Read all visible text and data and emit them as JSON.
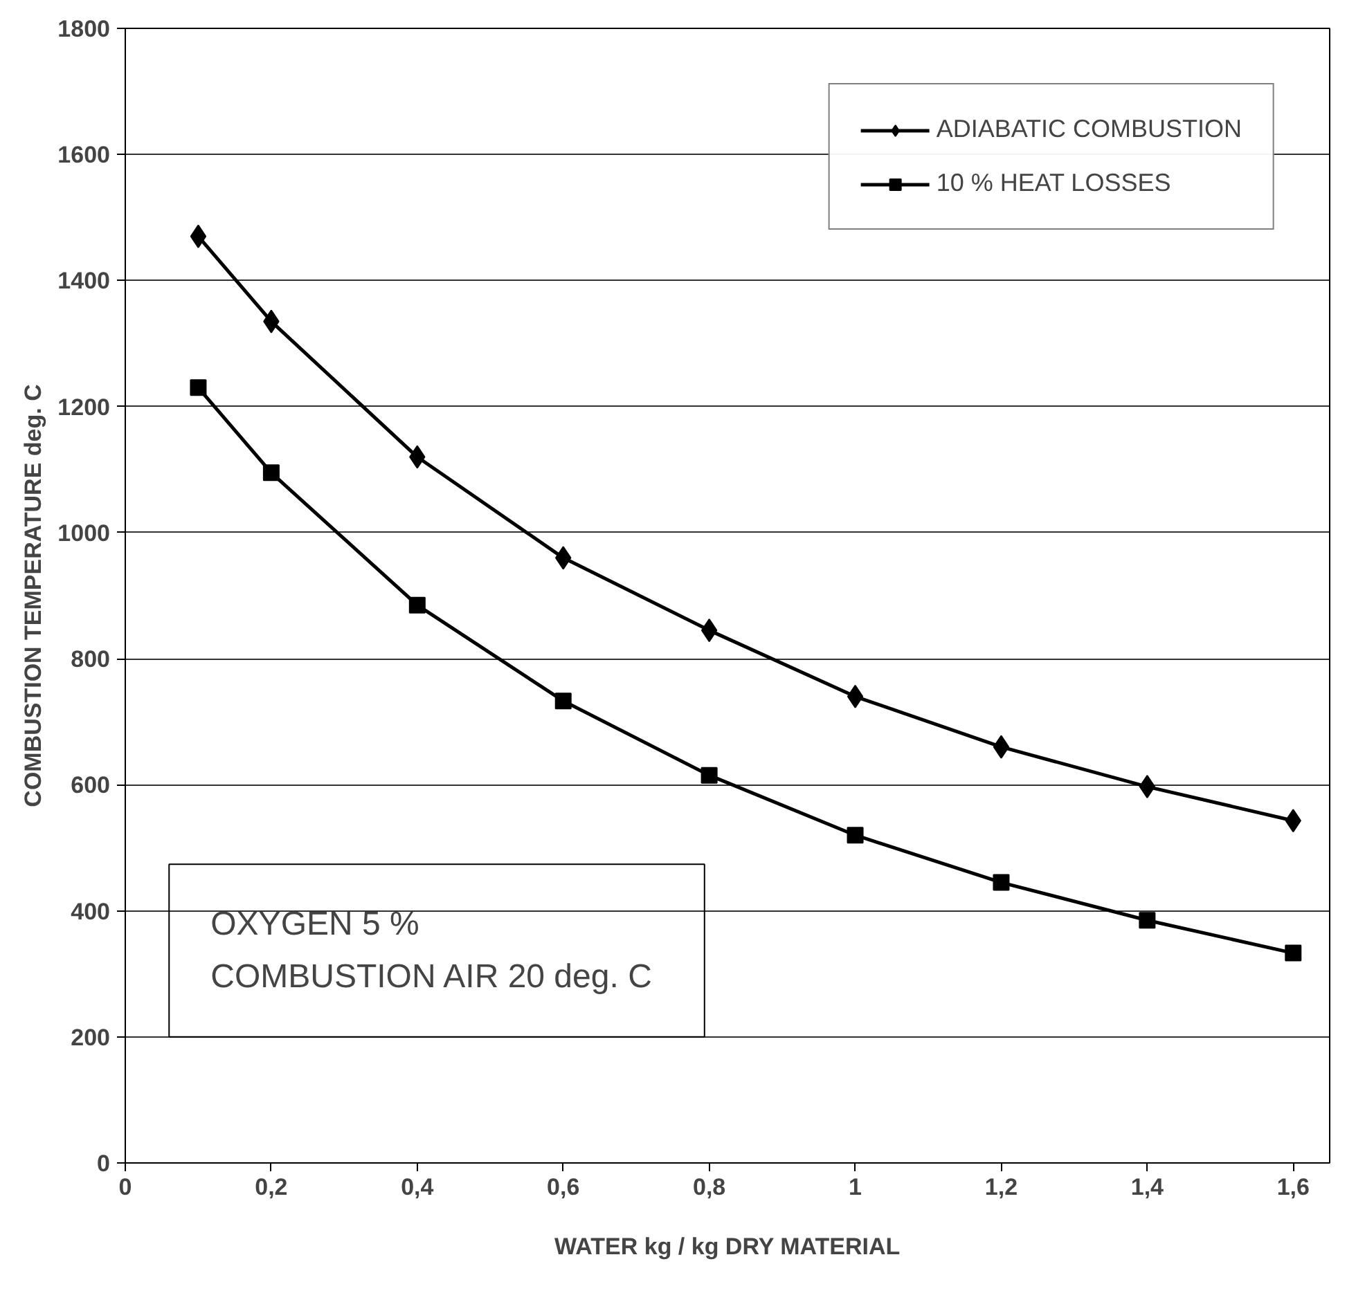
{
  "chart_data": {
    "type": "line",
    "xlabel": "WATER kg / kg DRY MATERIAL",
    "ylabel": "COMBUSTION TEMPERATURE deg. C",
    "x": [
      0.1,
      0.2,
      0.4,
      0.6,
      0.8,
      1.0,
      1.2,
      1.4,
      1.6
    ],
    "series": [
      {
        "name": "ADIABATIC COMBUSTION",
        "color": "#000000",
        "marker": "diamond",
        "values": [
          1470,
          1335,
          1120,
          960,
          845,
          740,
          660,
          597,
          543
        ]
      },
      {
        "name": "10 % HEAT LOSSES",
        "color": "#000000",
        "marker": "square",
        "values": [
          1230,
          1095,
          885,
          733,
          615,
          520,
          445,
          385,
          333
        ]
      }
    ],
    "xlim": [
      0,
      1.65
    ],
    "ylim": [
      0,
      1800
    ],
    "xticks": [
      0,
      {
        "value": 0.2,
        "label": "0,2"
      },
      {
        "value": 0.4,
        "label": "0,4"
      },
      {
        "value": 0.6,
        "label": "0,6"
      },
      {
        "value": 0.8,
        "label": "0,8"
      },
      1,
      {
        "value": 1.2,
        "label": "1,2"
      },
      {
        "value": 1.4,
        "label": "1,4"
      },
      {
        "value": 1.6,
        "label": "1,6"
      }
    ],
    "yticks": [
      0,
      200,
      400,
      600,
      800,
      1000,
      1200,
      1400,
      1600,
      1800
    ],
    "grid": "y",
    "legend": "top right",
    "line_style": "solid",
    "annotations": [
      "OXYGEN        5 %",
      "COMBUSTION  AIR 20 deg. C"
    ]
  }
}
